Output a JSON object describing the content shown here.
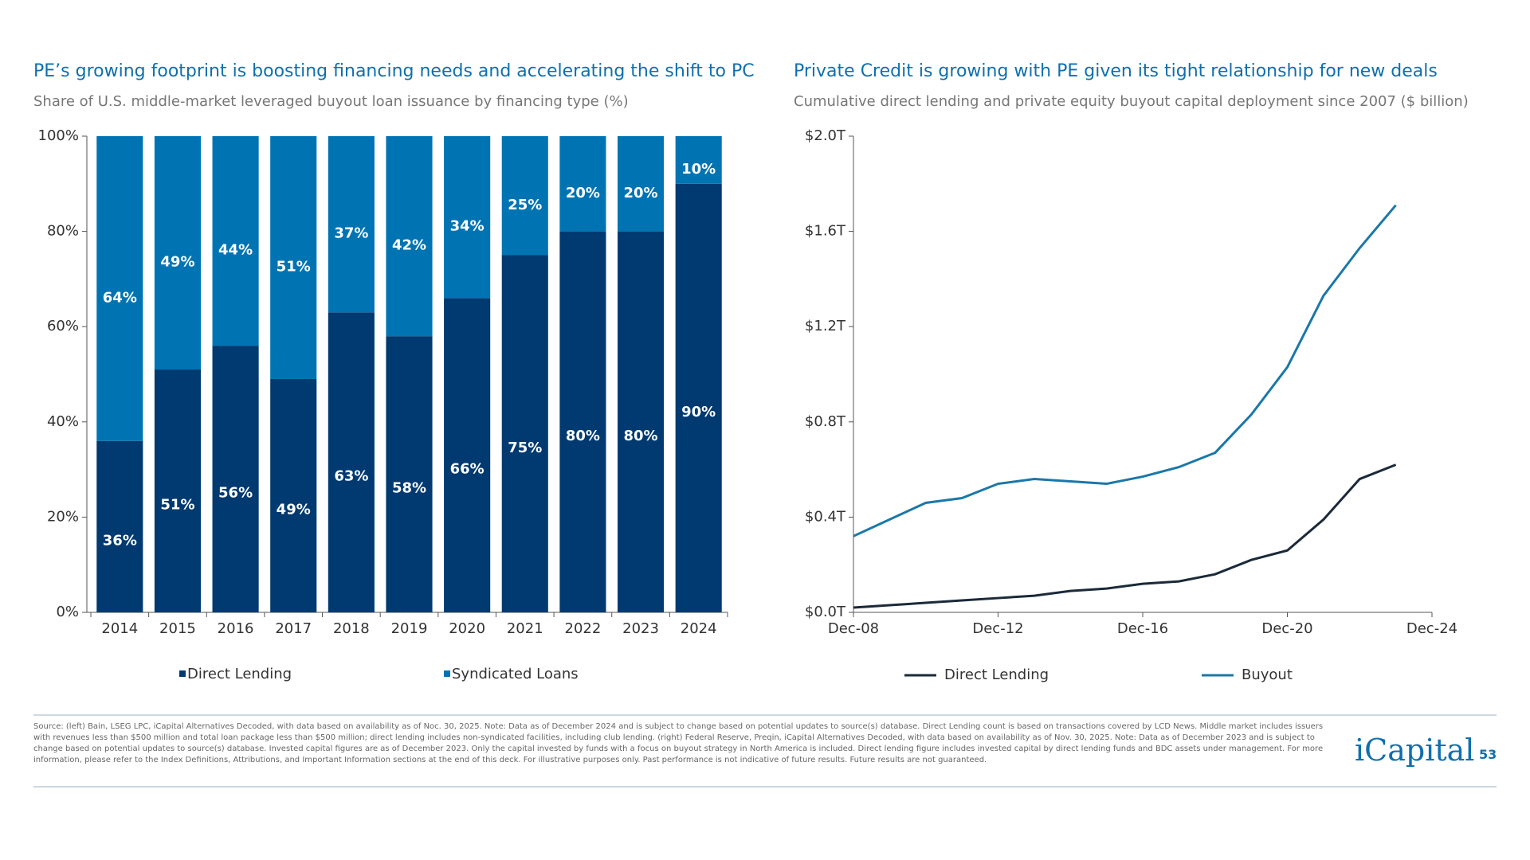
{
  "chart_data": [
    {
      "type": "bar",
      "stacked": true,
      "title": "PE’s growing footprint is boosting financing needs and accelerating the shift to PC",
      "subtitle": "Share of U.S. middle-market leveraged buyout loan issuance by financing type (%)",
      "categories": [
        "2014",
        "2015",
        "2016",
        "2017",
        "2018",
        "2019",
        "2020",
        "2021",
        "2022",
        "2023",
        "2024"
      ],
      "series": [
        {
          "name": "Direct Lending",
          "color": "#003a70",
          "values": [
            36,
            51,
            56,
            49,
            63,
            58,
            66,
            75,
            80,
            80,
            90
          ],
          "value_labels": [
            "36%",
            "51%",
            "56%",
            "49%",
            "63%",
            "58%",
            "66%",
            "75%",
            "80%",
            "80%",
            "90%"
          ]
        },
        {
          "name": "Syndicated Loans",
          "color": "#0074b3",
          "values": [
            64,
            49,
            44,
            51,
            37,
            42,
            34,
            25,
            20,
            20,
            10
          ],
          "value_labels": [
            "64%",
            "49%",
            "44%",
            "51%",
            "37%",
            "42%",
            "34%",
            "25%",
            "20%",
            "20%",
            "10%"
          ]
        }
      ],
      "ylim": [
        0,
        100
      ],
      "yticks": [
        {
          "value": 0,
          "label": "0%"
        },
        {
          "value": 20,
          "label": "20%"
        },
        {
          "value": 40,
          "label": "40%"
        },
        {
          "value": 60,
          "label": "60%"
        },
        {
          "value": 80,
          "label": "80%"
        },
        {
          "value": 100,
          "label": "100%"
        }
      ],
      "grid": false
    },
    {
      "type": "line",
      "title": "Private Credit is growing with PE given its tight relationship for new deals",
      "subtitle": "Cumulative direct lending and private equity buyout capital deployment since 2007 ($ billion)",
      "x": [
        "Dec-08",
        "Dec-09",
        "Dec-10",
        "Dec-11",
        "Dec-12",
        "Dec-13",
        "Dec-14",
        "Dec-15",
        "Dec-16",
        "Dec-17",
        "Dec-18",
        "Dec-19",
        "Dec-20",
        "Dec-21",
        "Dec-22",
        "Dec-23"
      ],
      "series": [
        {
          "name": "Direct Lending",
          "color": "#1b2a3a",
          "values": [
            0.02,
            0.03,
            0.04,
            0.05,
            0.06,
            0.07,
            0.09,
            0.1,
            0.12,
            0.13,
            0.16,
            0.22,
            0.26,
            0.39,
            0.56,
            0.62
          ]
        },
        {
          "name": "Buyout",
          "color": "#1a78a8",
          "values": [
            0.32,
            0.39,
            0.46,
            0.48,
            0.54,
            0.56,
            0.55,
            0.54,
            0.57,
            0.61,
            0.67,
            0.83,
            1.03,
            1.33,
            1.53,
            1.71
          ]
        }
      ],
      "xlim": [
        "Dec-08",
        "Dec-24"
      ],
      "xticks": [
        "Dec-08",
        "Dec-12",
        "Dec-16",
        "Dec-20",
        "Dec-24"
      ],
      "ylim": [
        0,
        2
      ],
      "yticks": [
        {
          "value": 0,
          "label": "$0.0T"
        },
        {
          "value": 0.4,
          "label": "$0.4T"
        },
        {
          "value": 0.8,
          "label": "$0.8T"
        },
        {
          "value": 1.2,
          "label": "$1.2T"
        },
        {
          "value": 1.6,
          "label": "$1.6T"
        },
        {
          "value": 2,
          "label": "$2.0T"
        }
      ],
      "grid": false
    }
  ],
  "footer": {
    "source": "Source: (left) Bain, LSEG LPC, iCapital Alternatives Decoded, with data based on availability as of Noc. 30, 2025. Note: Data as of December 2024 and is subject to change based on potential updates to source(s) database. Direct Lending count is based on transactions covered by LCD News. Middle market includes issuers with revenues less than $500 million and total loan package less than $500 million; direct lending includes non-syndicated facilities, including club lending. (right) Federal Reserve, Preqin, iCapital Alternatives Decoded, with data based on availability as of Nov. 30, 2025. Note: Data as of December 2023 and is subject to change based on potential updates to source(s) database. Invested capital figures are as of December 2023. Only the capital invested by funds with a focus on buyout strategy in North America is included. Direct lending figure includes invested capital by direct lending funds and BDC assets under management. For more information, please refer to the Index Definitions, Attributions, and Important Information sections at the end of this deck. For illustrative purposes only. Past performance is not indicative of future results. Future results are not guaranteed.",
    "logo": "iCapital",
    "page": "53"
  }
}
